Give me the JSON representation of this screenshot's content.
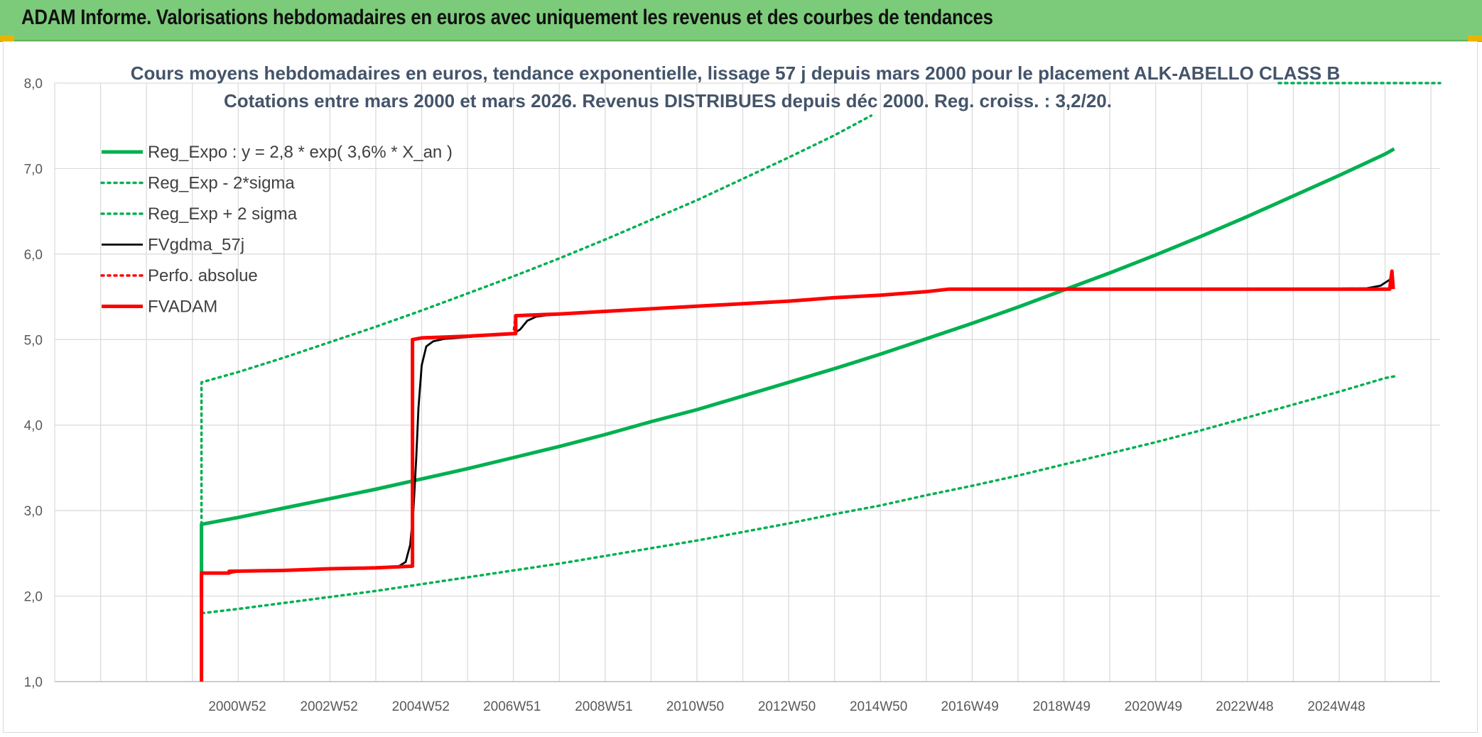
{
  "header": {
    "title": "ADAM Informe. Valorisations hebdomadaires en euros avec uniquement les revenus et des courbes de tendances"
  },
  "chart_data": {
    "type": "line",
    "title": "Cours moyens hebdomadaires en euros, tendance exponentielle, lissage 57 j depuis mars 2000 pour le placement ALK-ABELLO CLASS B",
    "subtitle": "Cotations entre mars 2000 et mars 2026. Revenus DISTRIBUES depuis déc 2000. Reg. croiss. : 3,2/20.",
    "xlabel": "",
    "ylabel": "",
    "ylim": [
      1,
      8
    ],
    "yticks": [
      "1,0",
      "2,0",
      "3,0",
      "4,0",
      "5,0",
      "6,0",
      "7,0",
      "8,0"
    ],
    "xlim": [
      1997.0,
      2027.2
    ],
    "xticks": [
      {
        "label": "2000W52",
        "x": 2000.98
      },
      {
        "label": "2002W52",
        "x": 2002.98
      },
      {
        "label": "2004W52",
        "x": 2004.98
      },
      {
        "label": "2006W51",
        "x": 2006.97
      },
      {
        "label": "2008W51",
        "x": 2008.97
      },
      {
        "label": "2010W50",
        "x": 2010.96
      },
      {
        "label": "2012W50",
        "x": 2012.96
      },
      {
        "label": "2014W50",
        "x": 2014.96
      },
      {
        "label": "2016W49",
        "x": 2016.95
      },
      {
        "label": "2018W49",
        "x": 2018.95
      },
      {
        "label": "2020W49",
        "x": 2020.95
      },
      {
        "label": "2022W48",
        "x": 2022.94
      },
      {
        "label": "2024W48",
        "x": 2024.94
      }
    ],
    "grid": true,
    "legend": "top-left",
    "series": [
      {
        "name": "Reg_Expo : y = 2,8 * exp( 3,6% *  X_an )",
        "color": "#00b050",
        "style": "solid-thick",
        "points": [
          [
            2000.2,
            2.0
          ],
          [
            2000.2,
            2.84
          ],
          [
            2001,
            2.92
          ],
          [
            2002,
            3.03
          ],
          [
            2003,
            3.14
          ],
          [
            2004,
            3.25
          ],
          [
            2005,
            3.37
          ],
          [
            2006,
            3.49
          ],
          [
            2007,
            3.62
          ],
          [
            2008,
            3.75
          ],
          [
            2009,
            3.89
          ],
          [
            2010,
            4.04
          ],
          [
            2011,
            4.18
          ],
          [
            2012,
            4.34
          ],
          [
            2013,
            4.5
          ],
          [
            2014,
            4.66
          ],
          [
            2015,
            4.83
          ],
          [
            2016,
            5.01
          ],
          [
            2017,
            5.19
          ],
          [
            2018,
            5.38
          ],
          [
            2019,
            5.58
          ],
          [
            2020,
            5.78
          ],
          [
            2021,
            5.99
          ],
          [
            2022,
            6.21
          ],
          [
            2023,
            6.44
          ],
          [
            2024,
            6.68
          ],
          [
            2025,
            6.92
          ],
          [
            2026,
            7.17
          ],
          [
            2026.2,
            7.23
          ]
        ]
      },
      {
        "name": "Reg_Exp - 2*sigma",
        "color": "#00b050",
        "style": "dotted",
        "points": [
          [
            2000.2,
            2.84
          ],
          [
            2000.2,
            1.8
          ],
          [
            2001,
            1.85
          ],
          [
            2002,
            1.92
          ],
          [
            2003,
            1.99
          ],
          [
            2004,
            2.06
          ],
          [
            2005,
            2.14
          ],
          [
            2006,
            2.22
          ],
          [
            2007,
            2.3
          ],
          [
            2008,
            2.38
          ],
          [
            2009,
            2.47
          ],
          [
            2010,
            2.56
          ],
          [
            2011,
            2.65
          ],
          [
            2012,
            2.75
          ],
          [
            2013,
            2.85
          ],
          [
            2014,
            2.96
          ],
          [
            2015,
            3.06
          ],
          [
            2016,
            3.18
          ],
          [
            2017,
            3.29
          ],
          [
            2018,
            3.41
          ],
          [
            2019,
            3.54
          ],
          [
            2020,
            3.67
          ],
          [
            2021,
            3.8
          ],
          [
            2022,
            3.94
          ],
          [
            2023,
            4.09
          ],
          [
            2024,
            4.24
          ],
          [
            2025,
            4.39
          ],
          [
            2026,
            4.55
          ],
          [
            2026.2,
            4.57
          ]
        ]
      },
      {
        "name": "Reg_Exp + 2 sigma",
        "color": "#00b050",
        "style": "dotted",
        "points": [
          [
            2000.2,
            2.84
          ],
          [
            2000.2,
            4.5
          ],
          [
            2001,
            4.62
          ],
          [
            2002,
            4.79
          ],
          [
            2003,
            4.97
          ],
          [
            2004,
            5.15
          ],
          [
            2005,
            5.34
          ],
          [
            2006,
            5.54
          ],
          [
            2007,
            5.74
          ],
          [
            2008,
            5.95
          ],
          [
            2009,
            6.17
          ],
          [
            2010,
            6.4
          ],
          [
            2011,
            6.63
          ],
          [
            2012,
            6.88
          ],
          [
            2013,
            7.13
          ],
          [
            2014,
            7.39
          ],
          [
            2014.8,
            7.62
          ]
        ]
      },
      {
        "name": "FVgdma_57j",
        "color": "#000000",
        "style": "solid",
        "points": [
          [
            2000.2,
            2.27
          ],
          [
            2000.8,
            2.27
          ],
          [
            2001,
            2.29
          ],
          [
            2002,
            2.3
          ],
          [
            2003,
            2.32
          ],
          [
            2004,
            2.33
          ],
          [
            2004.5,
            2.35
          ],
          [
            2004.65,
            2.4
          ],
          [
            2004.75,
            2.6
          ],
          [
            2004.82,
            3.0
          ],
          [
            2004.88,
            3.6
          ],
          [
            2004.93,
            4.2
          ],
          [
            2005.0,
            4.7
          ],
          [
            2005.1,
            4.92
          ],
          [
            2005.25,
            4.98
          ],
          [
            2005.5,
            5.01
          ],
          [
            2006,
            5.03
          ],
          [
            2007,
            5.07
          ],
          [
            2007.15,
            5.12
          ],
          [
            2007.3,
            5.22
          ],
          [
            2007.5,
            5.27
          ],
          [
            2008,
            5.3
          ],
          [
            2009,
            5.33
          ],
          [
            2010,
            5.36
          ],
          [
            2011,
            5.39
          ],
          [
            2012,
            5.42
          ],
          [
            2013,
            5.45
          ],
          [
            2014,
            5.49
          ],
          [
            2015,
            5.52
          ],
          [
            2016,
            5.56
          ],
          [
            2016.5,
            5.59
          ],
          [
            2017,
            5.59
          ],
          [
            2020,
            5.59
          ],
          [
            2024,
            5.59
          ],
          [
            2025.6,
            5.6
          ],
          [
            2025.9,
            5.63
          ],
          [
            2026.1,
            5.7
          ],
          [
            2026.15,
            5.74
          ]
        ]
      },
      {
        "name": "Perfo. absolue",
        "color": "#ff0000",
        "style": "dotted",
        "points": [
          [
            2000.2,
            2.27
          ],
          [
            2000.8,
            2.27
          ],
          [
            2001,
            2.29
          ],
          [
            2002,
            2.3
          ],
          [
            2003,
            2.32
          ],
          [
            2004,
            2.33
          ],
          [
            2004.8,
            2.35
          ],
          [
            2004.8,
            5.0
          ],
          [
            2005,
            5.02
          ],
          [
            2006,
            5.04
          ],
          [
            2007,
            5.07
          ],
          [
            2007.05,
            5.28
          ],
          [
            2008,
            5.3
          ],
          [
            2009,
            5.33
          ],
          [
            2010,
            5.36
          ],
          [
            2011,
            5.39
          ],
          [
            2012,
            5.42
          ],
          [
            2013,
            5.45
          ],
          [
            2014,
            5.49
          ],
          [
            2015,
            5.52
          ],
          [
            2016,
            5.56
          ],
          [
            2016.5,
            5.59
          ],
          [
            2020,
            5.59
          ],
          [
            2024,
            5.59
          ],
          [
            2026.1,
            5.59
          ],
          [
            2026.15,
            5.8
          ]
        ]
      },
      {
        "name": "FVADAM",
        "color": "#ff0000",
        "style": "solid-thick",
        "points": [
          [
            2000.2,
            1.0
          ],
          [
            2000.2,
            2.27
          ],
          [
            2000.8,
            2.27
          ],
          [
            2000.8,
            2.29
          ],
          [
            2002,
            2.3
          ],
          [
            2002.5,
            2.31
          ],
          [
            2003,
            2.32
          ],
          [
            2004,
            2.33
          ],
          [
            2004.8,
            2.35
          ],
          [
            2004.8,
            5.0
          ],
          [
            2005,
            5.02
          ],
          [
            2006,
            5.04
          ],
          [
            2007,
            5.07
          ],
          [
            2007.05,
            5.07
          ],
          [
            2007.05,
            5.28
          ],
          [
            2008,
            5.3
          ],
          [
            2009,
            5.33
          ],
          [
            2010,
            5.36
          ],
          [
            2011,
            5.39
          ],
          [
            2012,
            5.42
          ],
          [
            2013,
            5.45
          ],
          [
            2014,
            5.49
          ],
          [
            2015,
            5.52
          ],
          [
            2016,
            5.56
          ],
          [
            2016.5,
            5.59
          ],
          [
            2020,
            5.59
          ],
          [
            2024,
            5.59
          ],
          [
            2026.1,
            5.59
          ],
          [
            2026.15,
            5.8
          ],
          [
            2026.18,
            5.59
          ]
        ]
      }
    ]
  }
}
